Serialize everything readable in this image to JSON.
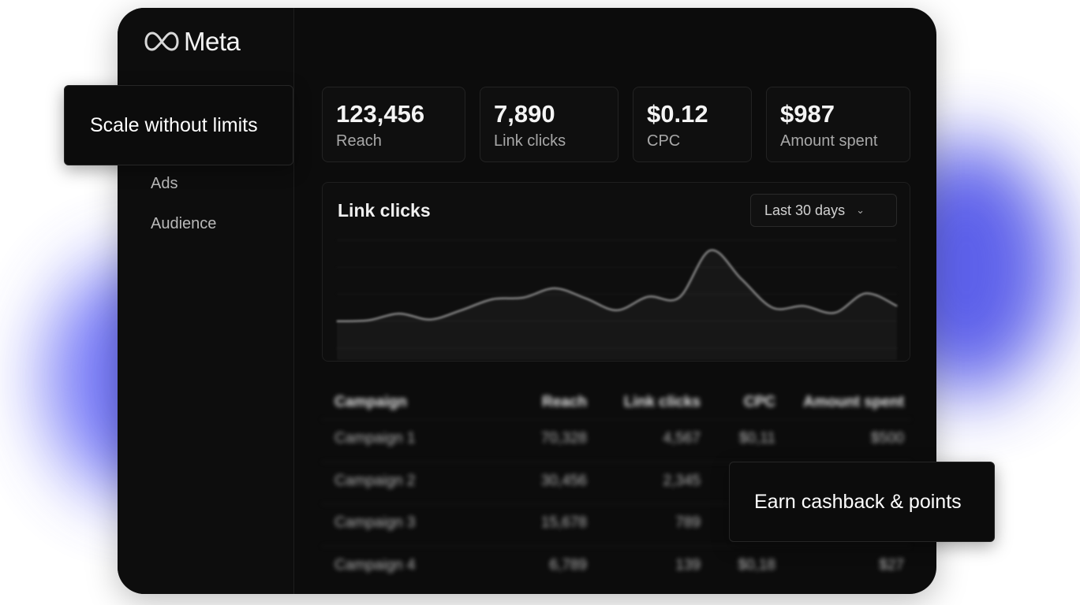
{
  "brand": {
    "logo_text": "Meta",
    "glow_color": "#5155ef"
  },
  "sidebar": {
    "items": [
      {
        "label": "Ads"
      },
      {
        "label": "Audience"
      }
    ]
  },
  "stats": [
    {
      "value": "123,456",
      "label": "Reach"
    },
    {
      "value": "7,890",
      "label": "Link clicks"
    },
    {
      "value": "$0.12",
      "label": "CPC"
    },
    {
      "value": "$987",
      "label": "Amount spent"
    }
  ],
  "chart_card": {
    "title": "Link clicks",
    "range_select": {
      "selected": "Last 30 days",
      "icon": "chevron-down-icon"
    }
  },
  "chart_data": {
    "type": "line",
    "title": "Link clicks",
    "series": [
      {
        "values": [
          4,
          5,
          13,
          6,
          17,
          30,
          32,
          43,
          31,
          17,
          33,
          32,
          88,
          54,
          20,
          22,
          14,
          37,
          22
        ]
      }
    ],
    "ylim": [
      0,
      100
    ],
    "grid": true
  },
  "table": {
    "columns": [
      "Campaign",
      "Reach",
      "Link clicks",
      "CPC",
      "Amount spent"
    ],
    "rows": [
      [
        "Campaign 1",
        "70,328",
        "4,567",
        "$0,11",
        "$500"
      ],
      [
        "Campaign 2",
        "30,456",
        "2,345",
        "",
        ""
      ],
      [
        "Campaign 3",
        "15,678",
        "789",
        "",
        ""
      ],
      [
        "Campaign 4",
        "6,789",
        "139",
        "$0,18",
        "$27"
      ]
    ]
  },
  "callouts": {
    "top_left": "Scale without limits",
    "bottom_right": "Earn cashback & points"
  }
}
